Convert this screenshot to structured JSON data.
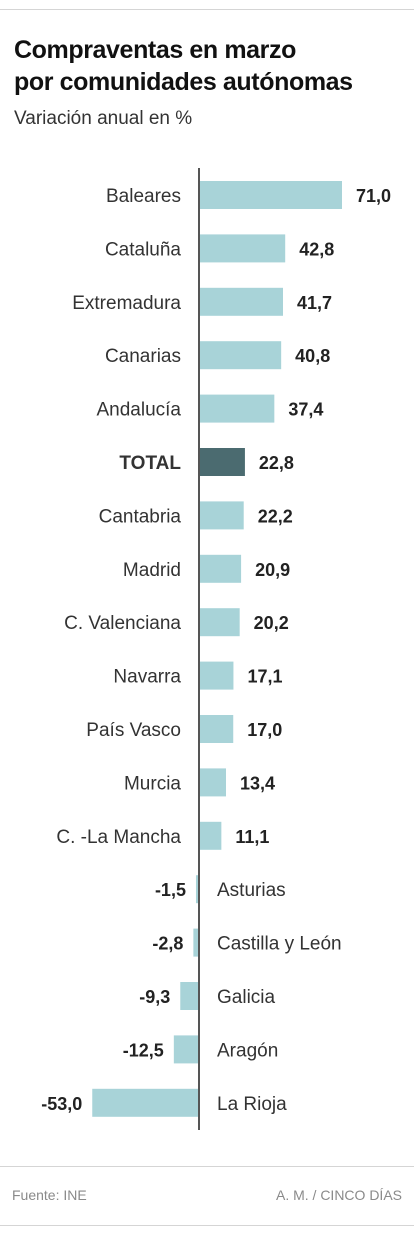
{
  "header": {
    "title_line1": "Compraventas en marzo",
    "title_line2": "por comunidades autónomas",
    "subtitle": "Variación anual en %"
  },
  "footer": {
    "source": "Fuente: INE",
    "credit": "A. M. / CINCO DÍAS"
  },
  "colors": {
    "bar": "#a8d3d8",
    "bar_highlight": "#4b6b70",
    "axis": "#555555"
  },
  "chart_data": {
    "type": "bar",
    "orientation": "horizontal",
    "title": "Compraventas en marzo por comunidades autónomas",
    "subtitle": "Variación anual en %",
    "categories": [
      "Baleares",
      "Cataluña",
      "Extremadura",
      "Canarias",
      "Andalucía",
      "TOTAL",
      "Cantabria",
      "Madrid",
      "C. Valenciana",
      "Navarra",
      "País Vasco",
      "Murcia",
      "C. -La Mancha",
      "Asturias",
      "Castilla y León",
      "Galicia",
      "Aragón",
      "La Rioja"
    ],
    "values": [
      71.0,
      42.8,
      41.7,
      40.8,
      37.4,
      22.8,
      22.2,
      20.9,
      20.2,
      17.1,
      17.0,
      13.4,
      11.1,
      -1.5,
      -2.8,
      -9.3,
      -12.5,
      -53.0
    ],
    "value_labels": [
      "71,0",
      "42,8",
      "41,7",
      "40,8",
      "37,4",
      "22,8",
      "22,2",
      "20,9",
      "20,2",
      "17,1",
      "17,0",
      "13,4",
      "11,1",
      "-1,5",
      "-2,8",
      "-9,3",
      "-12,5",
      "-53,0"
    ],
    "highlight": "TOTAL",
    "xlim": [
      -53,
      71
    ],
    "grid": false,
    "legend": "none"
  }
}
